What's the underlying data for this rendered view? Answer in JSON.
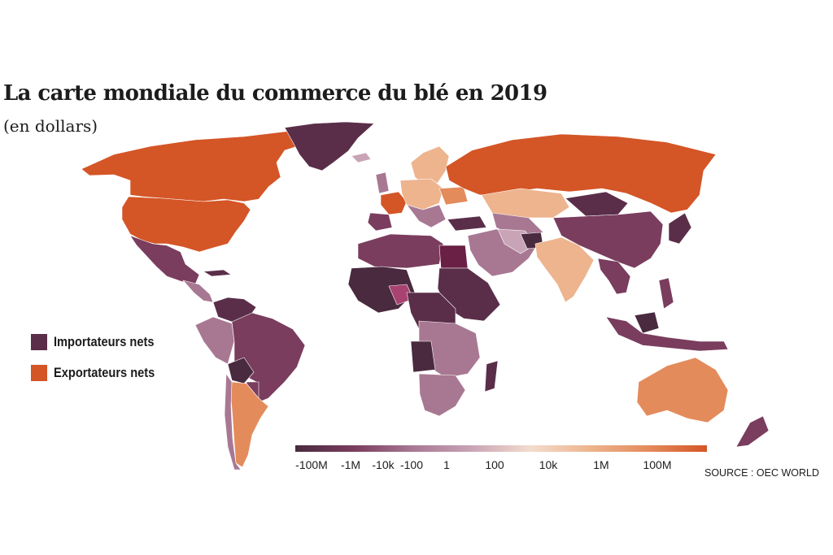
{
  "title": "La carte mondiale du commerce du blé en 2019",
  "subtitle": "(en dollars)",
  "colors": {
    "importers": "#5a2e49",
    "exporters": "#d45526",
    "import_deep": "#4a2a3f",
    "import_mid": "#7a3d5e",
    "import_light": "#a87893",
    "import_pale": "#c9a4b6",
    "neutral": "#f3dccd",
    "export_light": "#edb48e",
    "export_mid": "#e48b5c",
    "export_deep": "#d45526"
  },
  "legend": {
    "items": [
      {
        "label": "Importateurs nets",
        "color": "#5a2e49"
      },
      {
        "label": "Exportateurs nets",
        "color": "#d45526"
      }
    ]
  },
  "scale": {
    "ticks": [
      "-100M",
      "-1M",
      "-10k",
      "-100",
      "1",
      "100",
      "10k",
      "1M",
      "100M"
    ],
    "gradient": [
      "#4a2a3f",
      "#7a3d5e",
      "#a87893",
      "#c9a4b6",
      "#f3dccd",
      "#edb48e",
      "#e48b5c",
      "#d45526"
    ]
  },
  "source": "SOURCE : OEC WORLD"
}
